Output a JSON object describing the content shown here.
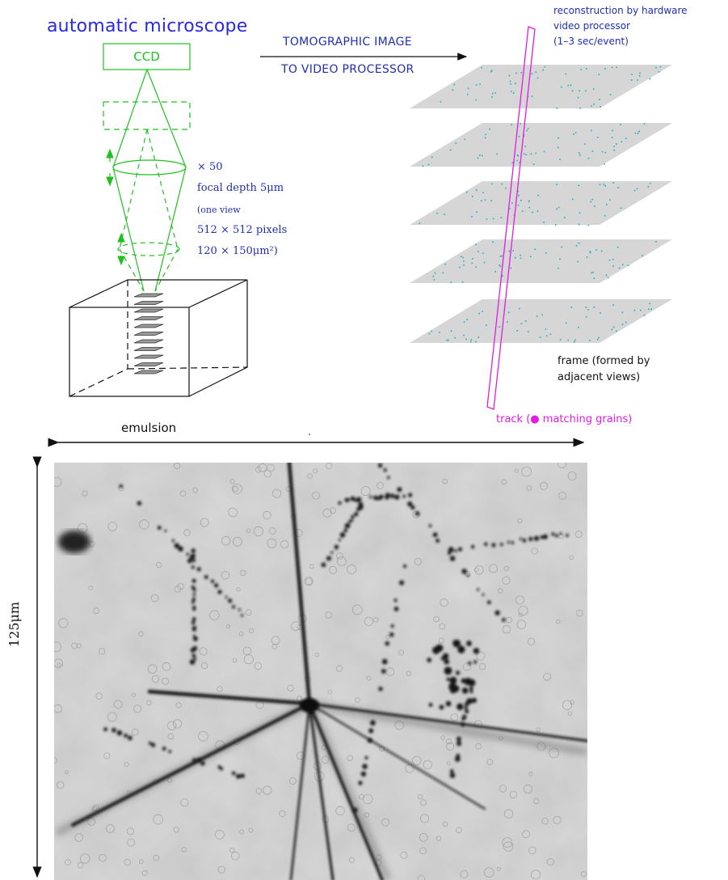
{
  "title": "automatic microscope",
  "ccd_label": "CCD",
  "tomographic": {
    "line1": "TOMOGRAPHIC IMAGE",
    "line2": "TO VIDEO PROCESSOR"
  },
  "reconstruction": {
    "line1": "reconstruction by hardware",
    "line2": "video processor",
    "line3": "(1–3 sec/event)"
  },
  "optics": {
    "magnification": "× 50",
    "focal_depth": "focal depth 5μm",
    "view_open": "(one view",
    "pixels": "512 × 512 pixels",
    "area": "120 × 150μm²)"
  },
  "frame_note": {
    "line1": "frame (formed by",
    "line2": "adjacent views)"
  },
  "track_note": "track (● matching grains)",
  "emulsion_label": "emulsion",
  "scale_label": "125μm",
  "colors": {
    "blue_text": "#1f2fb0",
    "optics_green": "#20c020",
    "track_magenta": "#e21ce2",
    "plane_gray": "#d6d6d6",
    "grain_cyan": "#1ab0b8"
  }
}
